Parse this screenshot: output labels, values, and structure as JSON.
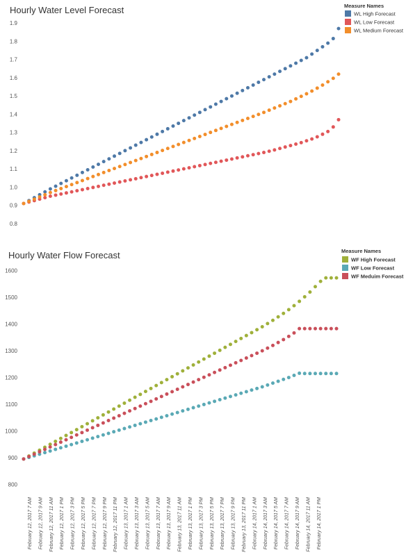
{
  "chart_data": [
    {
      "type": "scatter",
      "title": "Hourly Water Level Forecast",
      "legend_title": "Measure Names",
      "legend_position": "top-right",
      "ylim": [
        0.75,
        1.92
      ],
      "yticks": [
        0.8,
        0.9,
        1.0,
        1.1,
        1.2,
        1.3,
        1.4,
        1.5,
        1.6,
        1.7,
        1.8,
        1.9
      ],
      "ytick_labels": [
        "0.8",
        "0.9",
        "1.0",
        "1.1",
        "1.2",
        "1.3",
        "1.4",
        "1.5",
        "1.6",
        "1.7",
        "1.8",
        "1.9"
      ],
      "n_points": 60,
      "grid": false,
      "series": [
        {
          "name": "WL High Forecast",
          "color": "#4e79a7",
          "values": [
            0.91,
            0.926,
            0.942,
            0.958,
            0.974,
            0.99,
            1.005,
            1.02,
            1.035,
            1.05,
            1.065,
            1.08,
            1.095,
            1.11,
            1.125,
            1.14,
            1.155,
            1.17,
            1.185,
            1.2,
            1.215,
            1.23,
            1.245,
            1.26,
            1.275,
            1.29,
            1.305,
            1.32,
            1.335,
            1.35,
            1.365,
            1.38,
            1.395,
            1.41,
            1.425,
            1.44,
            1.455,
            1.47,
            1.485,
            1.5,
            1.515,
            1.53,
            1.545,
            1.56,
            1.575,
            1.59,
            1.605,
            1.62,
            1.635,
            1.65,
            1.665,
            1.68,
            1.695,
            1.71,
            1.73,
            1.75,
            1.77,
            1.79,
            1.815,
            1.87
          ]
        },
        {
          "name": "WL Low Forecast",
          "color": "#e15759",
          "values": [
            0.91,
            0.918,
            0.926,
            0.934,
            0.942,
            0.95,
            0.956,
            0.962,
            0.968,
            0.974,
            0.98,
            0.986,
            0.992,
            0.998,
            1.004,
            1.01,
            1.016,
            1.022,
            1.028,
            1.034,
            1.04,
            1.046,
            1.052,
            1.058,
            1.064,
            1.07,
            1.076,
            1.082,
            1.088,
            1.094,
            1.1,
            1.106,
            1.112,
            1.118,
            1.124,
            1.13,
            1.136,
            1.142,
            1.148,
            1.154,
            1.16,
            1.166,
            1.172,
            1.178,
            1.184,
            1.19,
            1.197,
            1.204,
            1.212,
            1.22,
            1.228,
            1.236,
            1.244,
            1.254,
            1.264,
            1.276,
            1.29,
            1.305,
            1.33,
            1.37
          ]
        },
        {
          "name": "WL Medium Forecast",
          "color": "#f28e2b",
          "values": [
            0.91,
            0.922,
            0.934,
            0.946,
            0.958,
            0.97,
            0.981,
            0.992,
            1.003,
            1.014,
            1.025,
            1.036,
            1.047,
            1.058,
            1.069,
            1.08,
            1.091,
            1.102,
            1.113,
            1.124,
            1.135,
            1.146,
            1.157,
            1.168,
            1.179,
            1.19,
            1.201,
            1.212,
            1.223,
            1.234,
            1.245,
            1.256,
            1.267,
            1.278,
            1.289,
            1.3,
            1.311,
            1.322,
            1.333,
            1.344,
            1.355,
            1.366,
            1.377,
            1.388,
            1.399,
            1.41,
            1.422,
            1.434,
            1.446,
            1.458,
            1.47,
            1.484,
            1.498,
            1.512,
            1.527,
            1.543,
            1.56,
            1.578,
            1.597,
            1.62
          ]
        }
      ]
    },
    {
      "type": "scatter",
      "title": "Hourly Water Flow Forecast",
      "legend_title": "Measure Names",
      "legend_position": "top-right",
      "ylim": [
        770,
        1620
      ],
      "yticks": [
        800,
        900,
        1000,
        1100,
        1200,
        1300,
        1400,
        1500,
        1600
      ],
      "ytick_labels": [
        "800",
        "900",
        "1000",
        "1100",
        "1200",
        "1300",
        "1400",
        "1500",
        "1600"
      ],
      "n_points": 60,
      "grid": false,
      "x_tick_labels": [
        "February 12, 2017 7 AM",
        "February 12, 2017 9 AM",
        "February 12, 2017 11 AM",
        "February 12, 2017 1 PM",
        "February 12, 2017 3 PM",
        "February 12, 2017 5 PM",
        "February 12, 2017 7 PM",
        "February 12, 2017 9 PM",
        "February 12, 2017 11 PM",
        "February 13, 2017 1 AM",
        "February 13, 2017 3 AM",
        "February 13, 2017 5 AM",
        "February 13, 2017 7 AM",
        "February 13, 2017 9 AM",
        "February 13, 2017 11 AM",
        "February 13, 2017 1 PM",
        "February 13, 2017 3 PM",
        "February 13, 2017 5 PM",
        "February 13, 2017 7 PM",
        "February 13, 2017 9 PM",
        "February 13, 2017 11 PM",
        "February 14, 2017 1 AM",
        "February 14, 2017 3 AM",
        "February 14, 2017 5 AM",
        "February 14, 2017 7 AM",
        "February 14, 2017 9 AM",
        "February 14, 2017 11 AM",
        "February 14, 2017 1 PM"
      ],
      "series": [
        {
          "name": "WF High Forecast",
          "color": "#9fb03a",
          "values": [
            895,
            906,
            917,
            928,
            939,
            950,
            961,
            972,
            983,
            994,
            1005,
            1016,
            1027,
            1038,
            1049,
            1060,
            1071,
            1082,
            1093,
            1104,
            1115,
            1126,
            1137,
            1148,
            1159,
            1170,
            1181,
            1192,
            1203,
            1214,
            1225,
            1236,
            1247,
            1258,
            1269,
            1280,
            1291,
            1302,
            1313,
            1324,
            1335,
            1346,
            1357,
            1368,
            1379,
            1390,
            1402,
            1414,
            1427,
            1440,
            1454,
            1469,
            1485,
            1502,
            1520,
            1540,
            1560,
            1573,
            1573,
            1573
          ]
        },
        {
          "name": "WF Low Forecast",
          "color": "#5aa9b5",
          "values": [
            895,
            901,
            907,
            913,
            919,
            925,
            931,
            937,
            943,
            949,
            955,
            961,
            967,
            973,
            979,
            985,
            991,
            997,
            1003,
            1009,
            1015,
            1021,
            1027,
            1033,
            1039,
            1045,
            1051,
            1057,
            1063,
            1069,
            1075,
            1081,
            1087,
            1093,
            1099,
            1105,
            1111,
            1117,
            1123,
            1129,
            1135,
            1141,
            1147,
            1153,
            1159,
            1165,
            1172,
            1179,
            1186,
            1193,
            1200,
            1208,
            1216,
            1215,
            1215,
            1215,
            1215,
            1215,
            1215,
            1215
          ]
        },
        {
          "name": "WF Meduim Forecast",
          "color": "#c94f5a",
          "values": [
            895,
            904,
            913,
            922,
            931,
            940,
            949,
            958,
            967,
            976,
            985,
            994,
            1003,
            1012,
            1021,
            1030,
            1039,
            1048,
            1057,
            1066,
            1075,
            1084,
            1093,
            1102,
            1111,
            1120,
            1129,
            1138,
            1147,
            1156,
            1165,
            1174,
            1183,
            1192,
            1201,
            1210,
            1219,
            1228,
            1237,
            1246,
            1255,
            1264,
            1273,
            1282,
            1291,
            1300,
            1310,
            1320,
            1331,
            1342,
            1354,
            1367,
            1383,
            1383,
            1383,
            1383,
            1383,
            1383,
            1383,
            1383
          ]
        }
      ]
    }
  ]
}
